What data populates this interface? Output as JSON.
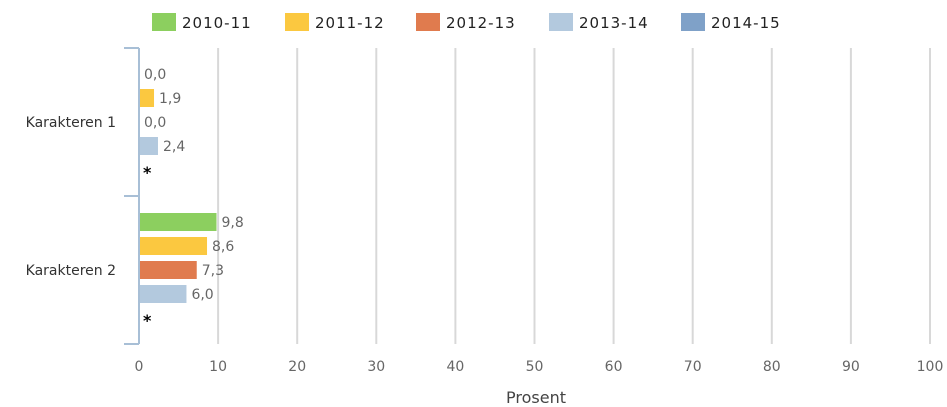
{
  "chart_data": {
    "type": "bar",
    "orientation": "horizontal",
    "categories": [
      "Karakteren 1",
      "Karakteren 2"
    ],
    "series": [
      {
        "name": "2010-11",
        "color": "#8ccf5f",
        "values": [
          0.0,
          9.8
        ],
        "labels": [
          "0,0",
          "9,8"
        ]
      },
      {
        "name": "2011-12",
        "color": "#fbc840",
        "values": [
          1.9,
          8.6
        ],
        "labels": [
          "1,9",
          "8,6"
        ]
      },
      {
        "name": "2012-13",
        "color": "#e07b4e",
        "values": [
          0.0,
          7.3
        ],
        "labels": [
          "0,0",
          "7,3"
        ]
      },
      {
        "name": "2013-14",
        "color": "#b3c9de",
        "values": [
          2.4,
          6.0
        ],
        "labels": [
          "2,4",
          "6,0"
        ]
      },
      {
        "name": "2014-15",
        "color": "#7fa1c8",
        "values": [
          null,
          null
        ],
        "labels": [
          "*",
          "*"
        ]
      }
    ],
    "xlabel": "Prosent",
    "xlim": [
      0,
      100
    ],
    "xticks": [
      0,
      10,
      20,
      30,
      40,
      50,
      60,
      70,
      80,
      90,
      100
    ],
    "grid": true,
    "legend": "top"
  }
}
